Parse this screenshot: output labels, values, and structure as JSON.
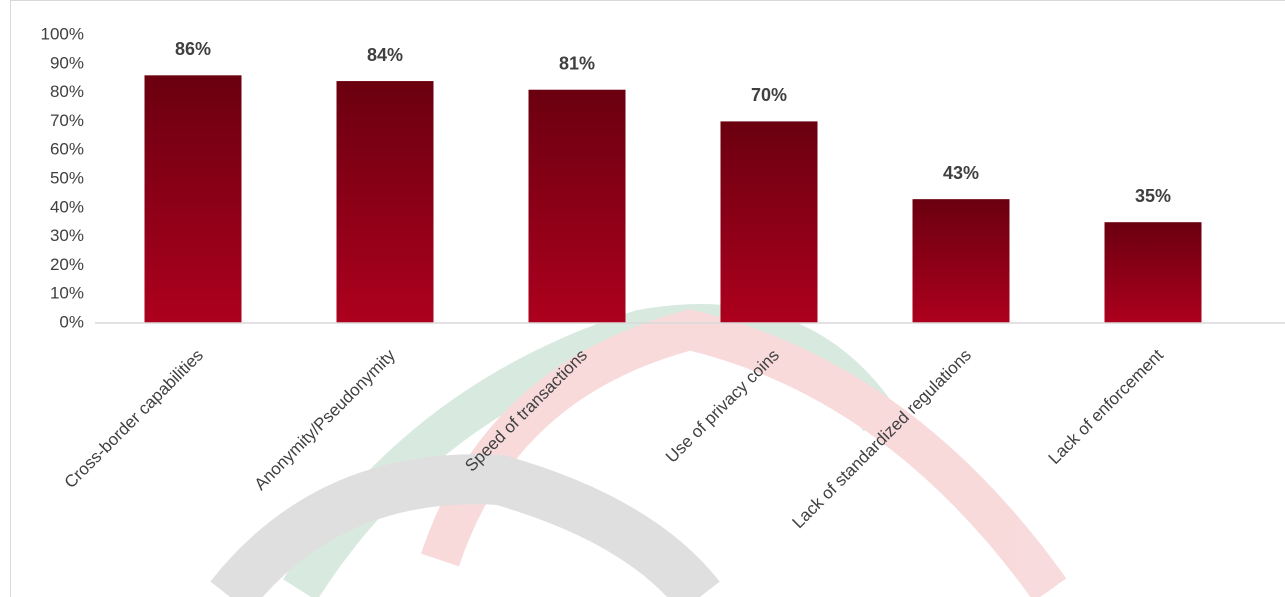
{
  "chart_data": {
    "type": "bar",
    "categories": [
      "Cross-border capabilities",
      "Anonymity/Pseudonymity",
      "Speed of transactions",
      "Use of privacy coins",
      "Lack of standardized regulations",
      "Lack of enforcement"
    ],
    "values": [
      86,
      84,
      81,
      70,
      43,
      35
    ],
    "value_labels": [
      "86%",
      "84%",
      "81%",
      "70%",
      "43%",
      "35%"
    ],
    "color": "#ad001e",
    "ylim": [
      0,
      100
    ],
    "yticks": [
      {
        "value": 0,
        "label": "0%"
      },
      {
        "value": 10,
        "label": "10%"
      },
      {
        "value": 20,
        "label": "20%"
      },
      {
        "value": 30,
        "label": "30%"
      },
      {
        "value": 40,
        "label": "40%"
      },
      {
        "value": 50,
        "label": "50%"
      },
      {
        "value": 60,
        "label": "60%"
      },
      {
        "value": 70,
        "label": "70%"
      },
      {
        "value": 80,
        "label": "80%"
      },
      {
        "value": 90,
        "label": "90%"
      },
      {
        "value": 100,
        "label": "100%"
      }
    ],
    "grid": false
  }
}
